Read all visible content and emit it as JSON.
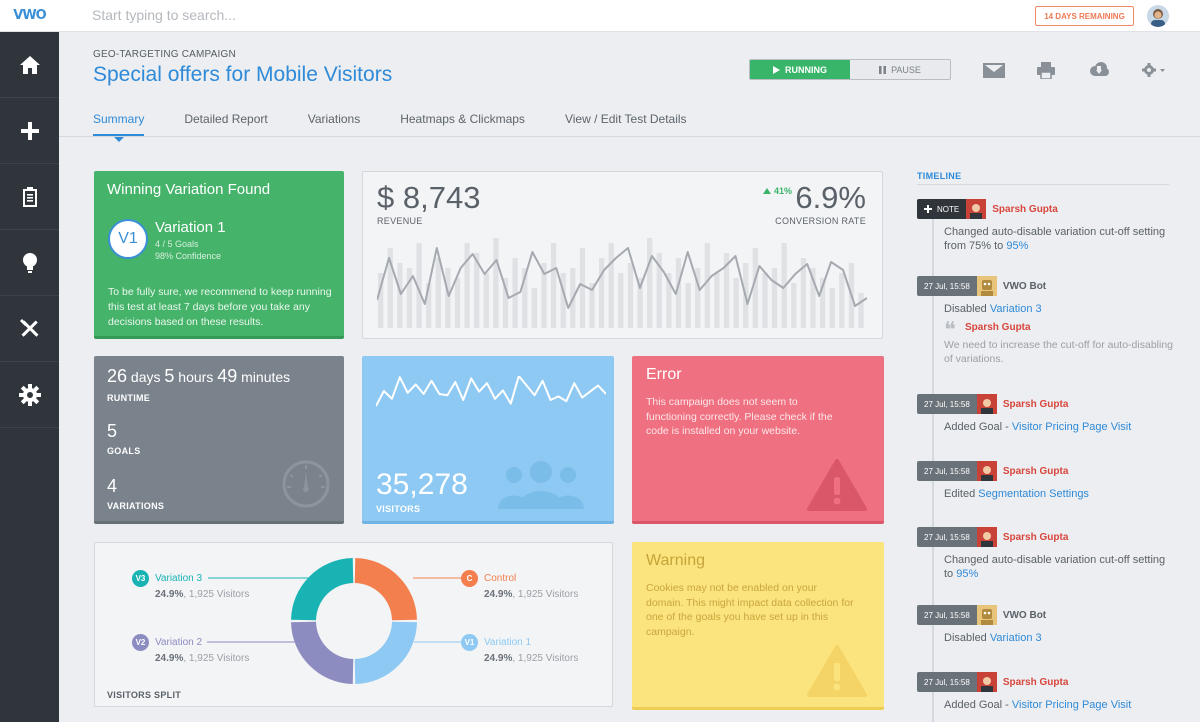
{
  "app": {
    "logo_text": "VWO",
    "search_placeholder": "Start typing to search...",
    "trial_badge": "14 DAYS REMAINING"
  },
  "sidebar": {
    "items": [
      {
        "icon": "home-icon"
      },
      {
        "icon": "plus-icon"
      },
      {
        "icon": "clipboard-icon"
      },
      {
        "icon": "lightbulb-icon"
      },
      {
        "icon": "tools-icon"
      },
      {
        "icon": "gear-icon"
      }
    ]
  },
  "header": {
    "campaign_type": "GEO-TARGETING CAMPAIGN",
    "campaign_title": "Special offers for Mobile Visitors",
    "running_label": "RUNNING",
    "pause_label": "PAUSE",
    "icons": [
      "mail-icon",
      "print-icon",
      "cloud-download-icon",
      "gear-dropdown-icon"
    ]
  },
  "tabs": [
    {
      "label": "Summary",
      "active": true
    },
    {
      "label": "Detailed Report",
      "active": false
    },
    {
      "label": "Variations",
      "active": false
    },
    {
      "label": "Heatmaps & Clickmaps",
      "active": false
    },
    {
      "label": "View / Edit Test Details",
      "active": false
    }
  ],
  "winning": {
    "title": "Winning Variation Found",
    "badge": "V1",
    "name": "Variation 1",
    "goals": "4 / 5 Goals",
    "confidence": "98% Confidence",
    "description": "To be fully sure, we recommend to keep running this test at least 7 days before you take any decisions based on these results."
  },
  "revenue": {
    "value": "$ 8,743",
    "label": "REVENUE",
    "conversion_value": "6.9%",
    "conversion_label": "CONVERSION RATE",
    "conversion_change": "41%"
  },
  "runtime": {
    "days": "26",
    "days_unit": "days",
    "hours": "5",
    "hours_unit": "hours",
    "minutes": "49",
    "minutes_unit": "minutes",
    "label": "RUNTIME",
    "goals_value": "5",
    "goals_label": "GOALS",
    "variations_value": "4",
    "variations_label": "VARIATIONS"
  },
  "visitors": {
    "value": "35,278",
    "label": "VISITORS"
  },
  "error": {
    "title": "Error",
    "description": "This campaign does not seem to functioning correctly. Please check if the code is installed on your website."
  },
  "warning": {
    "title": "Warning",
    "description": "Cookies may not be enabled on your domain. This might impact data collection for one of the goals you have set up in this campaign."
  },
  "split": {
    "label": "VISITORS SPLIT",
    "items": [
      {
        "badge": "V3",
        "name": "Variation 3",
        "pct": "24.9%",
        "visitors": "1,925 Visitors",
        "color": "#19b3b3"
      },
      {
        "badge": "C",
        "name": "Control",
        "pct": "24.9%",
        "visitors": "1,925 Visitors",
        "color": "#f47f4e"
      },
      {
        "badge": "V2",
        "name": "Variation 2",
        "pct": "24.9%",
        "visitors": "1,925 Visitors",
        "color": "#8c8cc0"
      },
      {
        "badge": "V1",
        "name": "Variation 1",
        "pct": "24.9%",
        "visitors": "1,925 Visitors",
        "color": "#8ec9f3"
      }
    ]
  },
  "chart_data": [
    {
      "type": "line",
      "title": "",
      "xlabel": "",
      "ylabel": "",
      "series": [
        {
          "values": [
            28,
            70,
            34,
            52,
            24,
            80,
            32,
            60,
            74,
            54,
            68,
            30,
            36,
            76,
            54,
            60,
            20,
            44,
            38,
            58,
            70,
            80,
            40,
            72,
            56,
            34,
            76,
            38,
            52,
            60,
            72,
            24,
            62,
            48,
            40,
            54,
            64,
            32,
            66,
            58,
            22,
            30
          ]
        }
      ],
      "bars": [
        55,
        80,
        65,
        60,
        85,
        45,
        70,
        60,
        50,
        85,
        75,
        55,
        90,
        50,
        70,
        60,
        40,
        65,
        85,
        55,
        60,
        80,
        45,
        70,
        85,
        55,
        65,
        50,
        90,
        75,
        55,
        70,
        45,
        60,
        85,
        55,
        75,
        50,
        65,
        80,
        55,
        60,
        85,
        45,
        70,
        60,
        50,
        40,
        55,
        65,
        35
      ]
    },
    {
      "type": "line",
      "title": "",
      "series": [
        {
          "values": [
            50,
            75,
            62,
            98,
            72,
            86,
            70,
            92,
            70,
            68,
            90,
            60,
            96,
            74,
            88,
            62,
            76,
            54,
            100,
            84,
            68,
            92,
            60,
            66,
            58,
            88,
            64,
            74,
            84,
            70
          ]
        }
      ]
    },
    {
      "type": "pie",
      "title": "",
      "categories": [
        "Control",
        "Variation 1",
        "Variation 2",
        "Variation 3"
      ],
      "values": [
        24.9,
        24.9,
        24.9,
        24.9
      ]
    }
  ],
  "timeline": {
    "title": "TIMELINE",
    "items": [
      {
        "tag": "NOTE",
        "user": "Sparsh Gupta",
        "user_type": "person",
        "text_before": "Changed auto-disable variation cut-off setting  from 75% to ",
        "highlight": "95%"
      },
      {
        "tag": "27 Jul, 15:58",
        "user": "VWO Bot",
        "user_type": "bot",
        "text_before": "Disabled ",
        "highlight": "Variation 3",
        "quote_name": "Sparsh Gupta",
        "quote_text": "We need to increase the cut-off for auto-disabling of variations."
      },
      {
        "tag": "27 Jul, 15:58",
        "user": "Sparsh Gupta",
        "user_type": "person",
        "text_before": "Added Goal - ",
        "highlight": "Visitor Pricing Page Visit"
      },
      {
        "tag": "27 Jul, 15:58",
        "user": "Sparsh Gupta",
        "user_type": "person",
        "text_before": "Edited ",
        "highlight": "Segmentation Settings"
      },
      {
        "tag": "27 Jul, 15:58",
        "user": "Sparsh Gupta",
        "user_type": "person",
        "text_before": "Changed auto-disable variation cut-off setting to ",
        "highlight": "95%"
      },
      {
        "tag": "27 Jul, 15:58",
        "user": "VWO Bot",
        "user_type": "bot",
        "text_before": "Disabled ",
        "highlight": "Variation 3"
      },
      {
        "tag": "27 Jul, 15:58",
        "user": "Sparsh Gupta",
        "user_type": "person",
        "text_before": "Added Goal - ",
        "highlight": "Visitor Pricing Page Visit"
      }
    ]
  }
}
